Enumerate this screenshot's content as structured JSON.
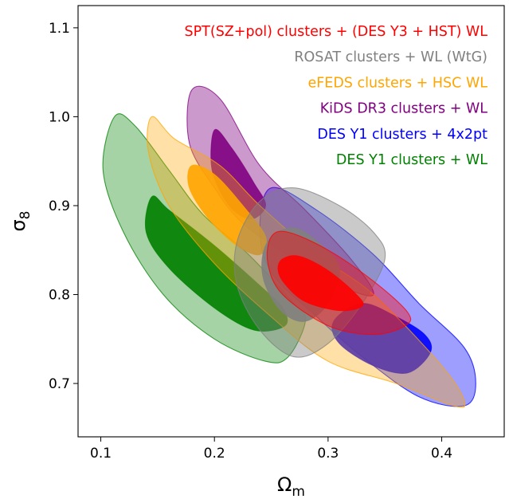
{
  "chart_data": {
    "type": "contour",
    "xlabel": "Ωm",
    "ylabel": "σ8",
    "xlim": [
      0.08,
      0.455
    ],
    "ylim": [
      0.64,
      1.125
    ],
    "x_ticks": [
      {
        "value": 0.1,
        "label": "0.1"
      },
      {
        "value": 0.2,
        "label": "0.2"
      },
      {
        "value": 0.3,
        "label": "0.3"
      },
      {
        "value": 0.4,
        "label": "0.4"
      }
    ],
    "y_ticks": [
      {
        "value": 0.7,
        "label": "0.7"
      },
      {
        "value": 0.8,
        "label": "0.8"
      },
      {
        "value": 0.9,
        "label": "0.9"
      },
      {
        "value": 1.0,
        "label": "1.0"
      },
      {
        "value": 1.1,
        "label": "1.1"
      }
    ],
    "grid": false,
    "legend_position": "top-right",
    "series": [
      {
        "name": "DES Y1 clusters + WL",
        "color": "#008000",
        "contours": [
          {
            "level": "95%",
            "points": [
              [
                0.112,
                1.0
              ],
              [
                0.13,
                0.99
              ],
              [
                0.16,
                0.94
              ],
              [
                0.19,
                0.89
              ],
              [
                0.23,
                0.845
              ],
              [
                0.27,
                0.79
              ],
              [
                0.28,
                0.77
              ],
              [
                0.265,
                0.73
              ],
              [
                0.245,
                0.725
              ],
              [
                0.2,
                0.75
              ],
              [
                0.155,
                0.8
              ],
              [
                0.12,
                0.87
              ],
              [
                0.102,
                0.94
              ]
            ]
          },
          {
            "level": "68%",
            "points": [
              [
                0.145,
                0.91
              ],
              [
                0.16,
                0.895
              ],
              [
                0.2,
                0.855
              ],
              [
                0.24,
                0.81
              ],
              [
                0.26,
                0.785
              ],
              [
                0.262,
                0.765
              ],
              [
                0.235,
                0.76
              ],
              [
                0.2,
                0.785
              ],
              [
                0.16,
                0.83
              ],
              [
                0.14,
                0.87
              ]
            ]
          }
        ]
      },
      {
        "name": "DES Y1 clusters + 4x2pt",
        "color": "#0000ff",
        "contours": [
          {
            "level": "95%",
            "points": [
              [
                0.25,
                0.92
              ],
              [
                0.29,
                0.895
              ],
              [
                0.34,
                0.845
              ],
              [
                0.38,
                0.79
              ],
              [
                0.42,
                0.74
              ],
              [
                0.43,
                0.7
              ],
              [
                0.42,
                0.675
              ],
              [
                0.38,
                0.685
              ],
              [
                0.33,
                0.73
              ],
              [
                0.29,
                0.775
              ],
              [
                0.25,
                0.825
              ],
              [
                0.24,
                0.875
              ]
            ]
          },
          {
            "level": "68%",
            "points": [
              [
                0.33,
                0.79
              ],
              [
                0.36,
                0.775
              ],
              [
                0.385,
                0.755
              ],
              [
                0.39,
                0.735
              ],
              [
                0.37,
                0.712
              ],
              [
                0.34,
                0.72
              ],
              [
                0.31,
                0.745
              ],
              [
                0.305,
                0.77
              ]
            ]
          }
        ]
      },
      {
        "name": "KiDS DR3 clusters + WL",
        "color": "#800080",
        "contours": [
          {
            "level": "95%",
            "points": [
              [
                0.18,
                1.03
              ],
              [
                0.205,
                1.02
              ],
              [
                0.24,
                0.945
              ],
              [
                0.28,
                0.895
              ],
              [
                0.32,
                0.84
              ],
              [
                0.34,
                0.8
              ],
              [
                0.31,
                0.81
              ],
              [
                0.27,
                0.84
              ],
              [
                0.225,
                0.88
              ],
              [
                0.2,
                0.92
              ],
              [
                0.178,
                0.97
              ]
            ]
          },
          {
            "level": "68%",
            "points": [
              [
                0.2,
                0.985
              ],
              [
                0.215,
                0.965
              ],
              [
                0.235,
                0.925
              ],
              [
                0.245,
                0.9
              ],
              [
                0.232,
                0.885
              ],
              [
                0.213,
                0.9
              ],
              [
                0.198,
                0.94
              ]
            ]
          }
        ]
      },
      {
        "name": "eFEDS clusters + HSC WL",
        "color": "#ffa500",
        "contours": [
          {
            "level": "95%",
            "points": [
              [
                0.145,
                1.0
              ],
              [
                0.165,
                0.975
              ],
              [
                0.205,
                0.945
              ],
              [
                0.24,
                0.9
              ],
              [
                0.29,
                0.845
              ],
              [
                0.34,
                0.8
              ],
              [
                0.4,
                0.72
              ],
              [
                0.42,
                0.68
              ],
              [
                0.41,
                0.675
              ],
              [
                0.36,
                0.7
              ],
              [
                0.3,
                0.725
              ],
              [
                0.25,
                0.775
              ],
              [
                0.2,
                0.835
              ],
              [
                0.16,
                0.9
              ],
              [
                0.142,
                0.96
              ]
            ]
          },
          {
            "level": "68%",
            "points": [
              [
                0.18,
                0.945
              ],
              [
                0.2,
                0.935
              ],
              [
                0.225,
                0.9
              ],
              [
                0.245,
                0.865
              ],
              [
                0.24,
                0.845
              ],
              [
                0.22,
                0.855
              ],
              [
                0.195,
                0.885
              ],
              [
                0.178,
                0.92
              ]
            ]
          }
        ]
      },
      {
        "name": "ROSAT clusters + WL (WtG)",
        "color": "#808080",
        "contours": [
          {
            "level": "95%",
            "points": [
              [
                0.24,
                0.905
              ],
              [
                0.27,
                0.92
              ],
              [
                0.31,
                0.9
              ],
              [
                0.34,
                0.87
              ],
              [
                0.35,
                0.84
              ],
              [
                0.33,
                0.79
              ],
              [
                0.3,
                0.745
              ],
              [
                0.27,
                0.73
              ],
              [
                0.24,
                0.76
              ],
              [
                0.22,
                0.81
              ],
              [
                0.22,
                0.86
              ]
            ]
          },
          {
            "level": "68%",
            "points": [
              [
                0.25,
                0.865
              ],
              [
                0.27,
                0.875
              ],
              [
                0.29,
                0.86
              ],
              [
                0.31,
                0.83
              ],
              [
                0.3,
                0.79
              ],
              [
                0.28,
                0.77
              ],
              [
                0.26,
                0.78
              ],
              [
                0.245,
                0.81
              ],
              [
                0.242,
                0.84
              ]
            ]
          }
        ]
      },
      {
        "name": "SPT(SZ+pol) clusters + (DES Y3 + HST) WL",
        "color": "#ff0000",
        "contours": [
          {
            "level": "95%",
            "points": [
              [
                0.25,
                0.865
              ],
              [
                0.265,
                0.87
              ],
              [
                0.3,
                0.85
              ],
              [
                0.34,
                0.815
              ],
              [
                0.37,
                0.78
              ],
              [
                0.368,
                0.765
              ],
              [
                0.34,
                0.755
              ],
              [
                0.3,
                0.765
              ],
              [
                0.26,
                0.8
              ],
              [
                0.247,
                0.835
              ]
            ]
          },
          {
            "level": "68%",
            "points": [
              [
                0.26,
                0.84
              ],
              [
                0.275,
                0.843
              ],
              [
                0.3,
                0.827
              ],
              [
                0.325,
                0.8
              ],
              [
                0.33,
                0.787
              ],
              [
                0.31,
                0.782
              ],
              [
                0.28,
                0.792
              ],
              [
                0.262,
                0.812
              ],
              [
                0.256,
                0.828
              ]
            ]
          }
        ]
      }
    ]
  }
}
